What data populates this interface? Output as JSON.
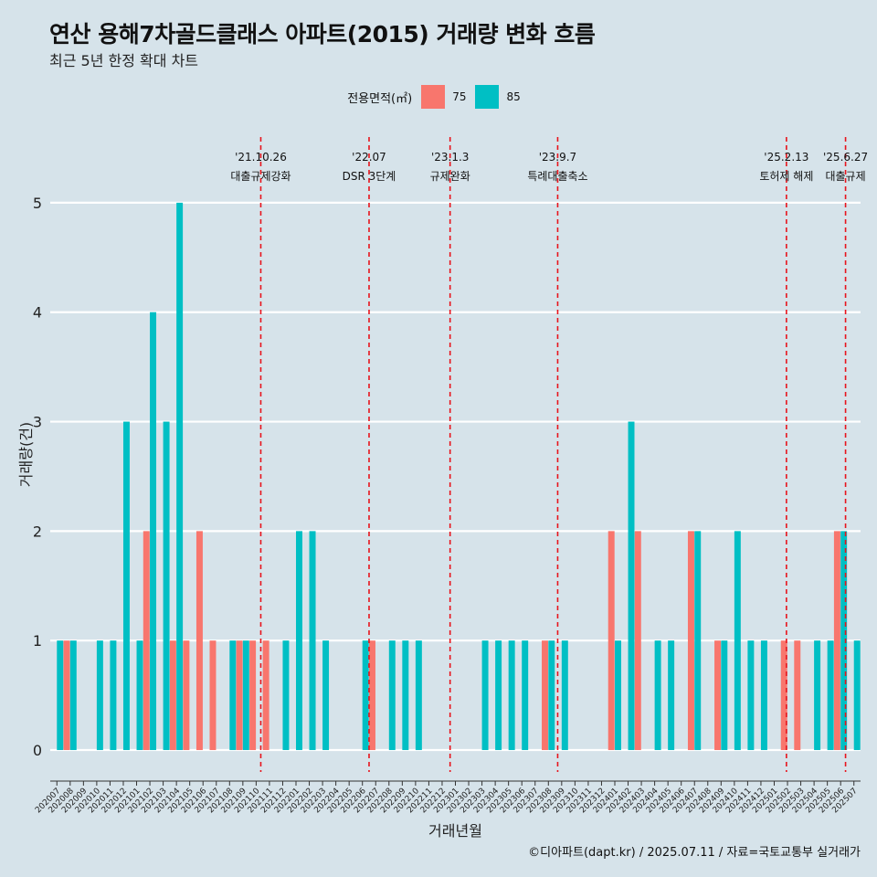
{
  "title": "연산 용해7차골드클래스 아파트(2015) 거래량 변화 흐름",
  "subtitle": "최근 5년 한정 확대 차트",
  "legend": {
    "title": "전용면적(㎡)",
    "items": [
      {
        "label": "75",
        "color": "#f8766d"
      },
      {
        "label": "85",
        "color": "#00bfc4"
      }
    ]
  },
  "caption": "©디아파트(dapt.kr) / 2025.07.11 / 자료=국토교통부 실거래가",
  "chart_data": {
    "type": "bar",
    "xlabel": "거래년월",
    "ylabel": "거래량(건)",
    "ylim": [
      -0.2,
      5.6
    ],
    "yticks": [
      0,
      1,
      2,
      3,
      4,
      5
    ],
    "categories": [
      "202007",
      "202008",
      "202009",
      "202010",
      "202011",
      "202012",
      "202101",
      "202102",
      "202103",
      "202104",
      "202105",
      "202106",
      "202107",
      "202108",
      "202109",
      "202110",
      "202111",
      "202112",
      "202201",
      "202202",
      "202203",
      "202204",
      "202205",
      "202206",
      "202207",
      "202208",
      "202209",
      "202210",
      "202211",
      "202212",
      "202301",
      "202302",
      "202303",
      "202304",
      "202305",
      "202306",
      "202307",
      "202308",
      "202309",
      "202310",
      "202311",
      "202312",
      "202401",
      "202402",
      "202403",
      "202404",
      "202405",
      "202406",
      "202407",
      "202408",
      "202409",
      "202410",
      "202411",
      "202412",
      "202501",
      "202502",
      "202503",
      "202504",
      "202505",
      "202506",
      "202507"
    ],
    "series": [
      {
        "name": "75",
        "color": "#f8766d",
        "values": [
          0,
          1,
          0,
          0,
          0,
          0,
          0,
          2,
          0,
          1,
          1,
          2,
          1,
          0,
          1,
          1,
          1,
          0,
          0,
          0,
          0,
          0,
          0,
          0,
          1,
          0,
          0,
          0,
          0,
          0,
          0,
          0,
          0,
          0,
          0,
          0,
          0,
          1,
          0,
          0,
          0,
          0,
          2,
          0,
          2,
          0,
          0,
          0,
          2,
          0,
          1,
          0,
          0,
          0,
          0,
          1,
          1,
          0,
          0,
          2,
          0
        ]
      },
      {
        "name": "85",
        "color": "#00bfc4",
        "values": [
          1,
          1,
          0,
          1,
          1,
          3,
          1,
          4,
          3,
          5,
          0,
          0,
          0,
          1,
          1,
          0,
          0,
          1,
          2,
          2,
          1,
          0,
          0,
          1,
          0,
          1,
          1,
          1,
          0,
          0,
          0,
          0,
          1,
          1,
          1,
          1,
          0,
          1,
          1,
          0,
          0,
          0,
          1,
          3,
          0,
          1,
          1,
          0,
          2,
          0,
          1,
          2,
          1,
          1,
          0,
          0,
          0,
          1,
          1,
          2,
          1
        ]
      }
    ],
    "events": [
      {
        "date": "'21.10.26",
        "label": "대출규제강화",
        "month": "202110",
        "offset": 0.85
      },
      {
        "date": "'22.07",
        "label": "DSR 3단계",
        "month": "202207",
        "offset": 0.0
      },
      {
        "date": "'23.1.3",
        "label": "규제완화",
        "month": "202301",
        "offset": 0.1
      },
      {
        "date": "'23.9.7",
        "label": "특례대출축소",
        "month": "202309",
        "offset": 0.2
      },
      {
        "date": "'25.2.13",
        "label": "토허제 해제",
        "month": "202502",
        "offset": 0.42
      },
      {
        "date": "'25.6.27",
        "label": "대출규제",
        "month": "202506",
        "offset": 0.87
      }
    ]
  }
}
